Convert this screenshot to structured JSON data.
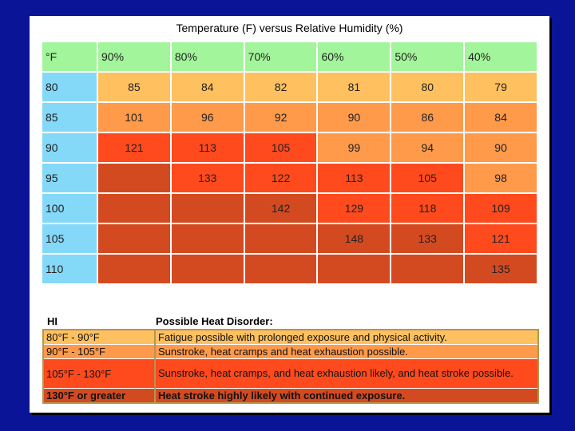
{
  "chart_data": {
    "type": "table",
    "title": "Temperature (F) versus Relative Humidity (%)",
    "corner": "°F",
    "columns": [
      "90%",
      "80%",
      "70%",
      "60%",
      "50%",
      "40%"
    ],
    "rows": [
      {
        "label": "80",
        "values": [
          "85",
          "84",
          "82",
          "81",
          "80",
          "79"
        ]
      },
      {
        "label": "85",
        "values": [
          "101",
          "96",
          "92",
          "90",
          "86",
          "84"
        ]
      },
      {
        "label": "90",
        "values": [
          "121",
          "113",
          "105",
          "99",
          "94",
          "90"
        ]
      },
      {
        "label": "95",
        "values": [
          "",
          "133",
          "122",
          "113",
          "105",
          "98"
        ]
      },
      {
        "label": "100",
        "values": [
          "",
          "",
          "142",
          "129",
          "118",
          "109"
        ]
      },
      {
        "label": "105",
        "values": [
          "",
          "",
          "",
          "148",
          "133",
          "121"
        ]
      },
      {
        "label": "110",
        "values": [
          "",
          "",
          "",
          "",
          "",
          "135"
        ]
      }
    ],
    "legend": {
      "hi_label": "HI",
      "disorder_label": "Possible Heat Disorder:",
      "entries": [
        {
          "range": "80°F - 90°F",
          "text": "Fatigue possible with prolonged exposure and physical activity.",
          "bold": false,
          "color": "#ffc060"
        },
        {
          "range": "90°F - 105°F",
          "text": "Sunstroke, heat cramps and heat exhaustion possible.",
          "bold": false,
          "color": "#ff9a4a"
        },
        {
          "range": "105°F - 130°F",
          "text": "Sunstroke, heat cramps, and heat exhaustion likely, and heat stroke possible.",
          "bold": false,
          "color": "#ff4a1e"
        },
        {
          "range": "130°F or greater",
          "text": "Heat stroke highly likely with continued exposure.",
          "bold": true,
          "color": "#d44a20"
        }
      ]
    },
    "colors": {
      "header_green": "#a2f59a",
      "row_header_blue": "#84d8f8",
      "light_orange": "#ffc060",
      "medium_orange": "#ff9a4a",
      "red_orange": "#ff4a1e",
      "dark_red": "#d44a20"
    },
    "cell_colors": [
      [
        "light_orange",
        "light_orange",
        "light_orange",
        "light_orange",
        "light_orange",
        "light_orange"
      ],
      [
        "medium_orange",
        "medium_orange",
        "medium_orange",
        "medium_orange",
        "medium_orange",
        "medium_orange"
      ],
      [
        "red_orange",
        "red_orange",
        "red_orange",
        "medium_orange",
        "medium_orange",
        "medium_orange"
      ],
      [
        "dark_red",
        "red_orange",
        "red_orange",
        "red_orange",
        "red_orange",
        "medium_orange"
      ],
      [
        "dark_red",
        "dark_red",
        "dark_red",
        "red_orange",
        "red_orange",
        "red_orange"
      ],
      [
        "dark_red",
        "dark_red",
        "dark_red",
        "dark_red",
        "dark_red",
        "red_orange"
      ],
      [
        "dark_red",
        "dark_red",
        "dark_red",
        "dark_red",
        "dark_red",
        "dark_red"
      ]
    ]
  }
}
